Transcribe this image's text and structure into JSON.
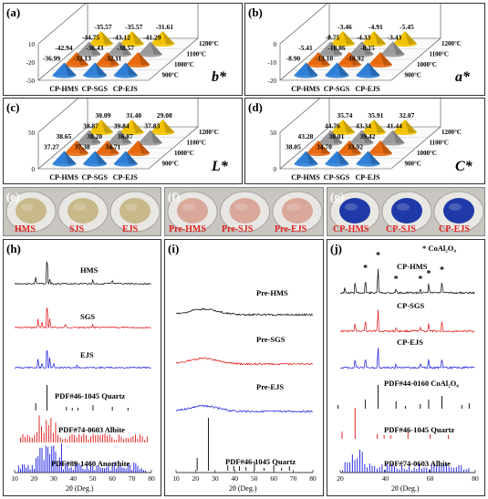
{
  "panels_top": [
    {
      "letter": "(a)",
      "param": "b*",
      "yticks": [
        "10",
        "-20",
        "-50"
      ],
      "temps": [
        "1200°C",
        "1100°C",
        "1000°C",
        "900°C"
      ],
      "samples": [
        "CP-HMS",
        "CP-SGS",
        "CP-EJS"
      ],
      "rows": [
        [
          "-35.57",
          "-35.57",
          "-31.61"
        ],
        [
          "-44.75",
          "-43.12",
          "-41.29"
        ],
        [
          "-42.94",
          "-36.43",
          "-38.57"
        ],
        [
          "-36.99",
          "-32.13",
          "-32.11"
        ]
      ]
    },
    {
      "letter": "(b)",
      "param": "a*",
      "yticks": [
        "0",
        "-10",
        "-20"
      ],
      "temps": [
        "1200°C",
        "1100°C",
        "1000°C",
        "900°C"
      ],
      "samples": [
        "CP-HMS",
        "CP-SGS",
        "CP-EJS"
      ],
      "rows": [
        [
          "-3.46",
          "-4.91",
          "-5.45"
        ],
        [
          "-0.75",
          "-4.33",
          "-3.43"
        ],
        [
          "-5.41",
          "-10.86",
          "-8.15"
        ],
        [
          "-8.90",
          "-13.10",
          "-10.92"
        ]
      ]
    },
    {
      "letter": "(c)",
      "param": "L*",
      "yticks": [
        "50",
        "0"
      ],
      "temps": [
        "1200°C",
        "1100°C",
        "1000°C",
        "900°C"
      ],
      "samples": [
        "CP-HMS",
        "CP-SGS",
        "CP-EJS"
      ],
      "rows": [
        [
          "30.09",
          "31.40",
          "29.08"
        ],
        [
          "38.87",
          "39.84",
          "37.83"
        ],
        [
          "38.65",
          "38.20",
          "36.87"
        ],
        [
          "37.27",
          "37.38",
          "34.71"
        ]
      ]
    },
    {
      "letter": "(d)",
      "param": "C*",
      "yticks": [
        "50",
        "0"
      ],
      "temps": [
        "1200°C",
        "1100°C",
        "1000°C",
        "900°C"
      ],
      "samples": [
        "CP-HMS",
        "CP-SGS",
        "CP-EJS"
      ],
      "rows": [
        [
          "35.74",
          "35.91",
          "32.07"
        ],
        [
          "44.76",
          "43.34",
          "41.44"
        ],
        [
          "43.28",
          "38.01",
          "39.42"
        ],
        [
          "38.05",
          "34.70",
          "33.92"
        ]
      ]
    }
  ],
  "photos": [
    {
      "letter": "(e)",
      "labels": [
        "HMS",
        "SJS",
        "EJS"
      ],
      "dish_color": "#c8b98a"
    },
    {
      "letter": "(f)",
      "labels": [
        "Pre-HMS",
        "Pre-SJS",
        "Pre-EJS"
      ],
      "dish_color": "#d9a89a"
    },
    {
      "letter": "(g)",
      "labels": [
        "CP-HMS",
        "CP-SJS",
        "CP-EJS"
      ],
      "dish_color": "#1f3aa8"
    }
  ],
  "xrd": [
    {
      "letter": "(h)",
      "xticks": [
        "10",
        "20",
        "30",
        "40",
        "50",
        "60",
        "70",
        "80"
      ],
      "xlabel": "2θ (Deg.)",
      "labels": [
        "HMS",
        "SGS",
        "EJS",
        "PDF#46-1045 Quartz",
        "PDF#74-0603 Albite",
        "PDF#89-1460 Anorthite"
      ]
    },
    {
      "letter": "(i)",
      "xticks": [
        "10",
        "20",
        "30",
        "40",
        "50",
        "60",
        "70",
        "80"
      ],
      "xlabel": "2θ (Deg.)",
      "labels": [
        "Pre-HMS",
        "Pre-SGS",
        "Pre-EJS",
        "PDF#46-1045 Quartz"
      ]
    },
    {
      "letter": "(j)",
      "xticks": [
        "20",
        "40",
        "60",
        "80"
      ],
      "xlabel": "2θ (Deg.)",
      "legend": "* CoAl₂O₄",
      "labels": [
        "CP-HMS",
        "CP-SGS",
        "CP-EJS",
        "PDF#44-0160 CoAl₂O₄",
        "PDF#46-1045 Quartz",
        "PDF#74-0603 Albite"
      ]
    }
  ],
  "colors": {
    "yellow": "#f2c200",
    "gray": "#9a9a9a",
    "orange": "#e86a10",
    "blue": "#2f7fd6",
    "red": "#e01010",
    "blue_line": "#1515e0"
  }
}
